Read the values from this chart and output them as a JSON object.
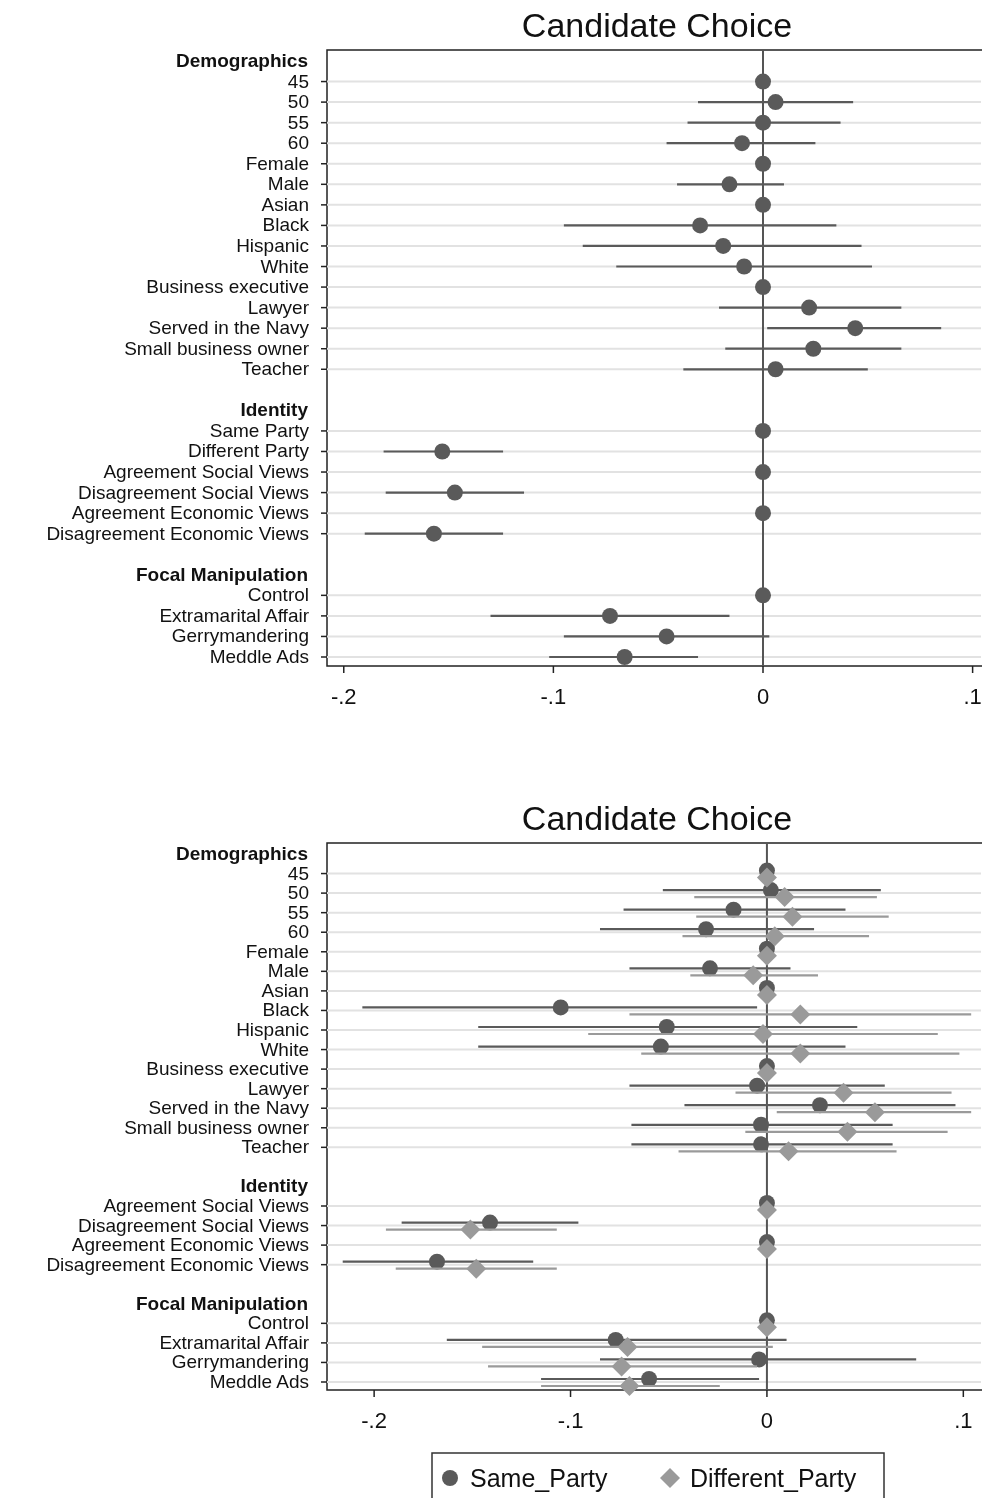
{
  "chart_data": [
    {
      "type": "scatter",
      "title": "Candidate Choice",
      "orientation": "horizontal",
      "marker": "circle",
      "categories": [
        "Demographics",
        "45",
        "50",
        "55",
        "60",
        "Female",
        "Male",
        "Asian",
        "Black",
        "Hispanic",
        "White",
        "Business executive",
        "Lawyer",
        "Served in the Navy",
        "Small business owner",
        "Teacher",
        null,
        "Identity",
        "Same Party",
        "Different Party",
        "Agreement Social Views",
        "Disagreement Social Views",
        "Agreement Economic Views",
        "Disagreement Economic Views",
        null,
        "Focal Manipulation",
        "Control",
        "Extramarital Affair",
        "Gerrymandering",
        "Meddle Ads"
      ],
      "series": [
        {
          "color": "#5a5a5a",
          "values": [
            null,
            0,
            0.006,
            0,
            -0.01,
            0,
            -0.016,
            0,
            -0.03,
            -0.019,
            -0.009,
            0,
            0.022,
            0.044,
            0.024,
            0.006,
            null,
            null,
            0,
            -0.153,
            0,
            -0.147,
            0,
            -0.157,
            null,
            null,
            0,
            -0.073,
            -0.046,
            -0.066
          ],
          "errors": [
            null,
            null,
            [
              -0.031,
              0.043
            ],
            [
              -0.036,
              0.037
            ],
            [
              -0.046,
              0.025
            ],
            null,
            [
              -0.041,
              0.01
            ],
            null,
            [
              -0.095,
              0.035
            ],
            [
              -0.086,
              0.047
            ],
            [
              -0.07,
              0.052
            ],
            null,
            [
              -0.021,
              0.066
            ],
            [
              0.002,
              0.085
            ],
            [
              -0.018,
              0.066
            ],
            [
              -0.038,
              0.05
            ],
            null,
            null,
            null,
            [
              -0.181,
              -0.124
            ],
            null,
            [
              -0.18,
              -0.114
            ],
            null,
            [
              -0.19,
              -0.124
            ],
            null,
            null,
            null,
            [
              -0.13,
              -0.016
            ],
            [
              -0.095,
              0.003
            ],
            [
              -0.102,
              -0.031
            ]
          ]
        }
      ],
      "xlim": [
        -0.208,
        0.104
      ],
      "xticks": [
        {
          "value": -0.2,
          "label": "-.2"
        },
        {
          "value": -0.1,
          "label": "-.1"
        },
        {
          "value": 0,
          "label": "0"
        },
        {
          "value": 0.1,
          "label": ".1"
        }
      ],
      "ref_lines": [
        {
          "axis": "x",
          "value": 0
        }
      ],
      "grid": "y",
      "legend": false
    },
    {
      "type": "scatter",
      "title": "Candidate Choice",
      "orientation": "horizontal",
      "categories": [
        "Demographics",
        "45",
        "50",
        "55",
        "60",
        "Female",
        "Male",
        "Asian",
        "Black",
        "Hispanic",
        "White",
        "Business executive",
        "Lawyer",
        "Served in the Navy",
        "Small business owner",
        "Teacher",
        null,
        "Identity",
        "Agreement Social Views",
        "Disagreement Social Views",
        "Agreement Economic Views",
        "Disagreement Economic Views",
        null,
        "Focal Manipulation",
        "Control",
        "Extramarital Affair",
        "Gerrymandering",
        "Meddle Ads"
      ],
      "series": [
        {
          "name": "Same_Party",
          "color": "#5a5a5a",
          "marker": "circle",
          "values": [
            null,
            0,
            0.002,
            -0.017,
            -0.031,
            0,
            -0.029,
            0,
            -0.105,
            -0.051,
            -0.054,
            0,
            -0.005,
            0.027,
            -0.003,
            -0.003,
            null,
            null,
            0,
            -0.141,
            0,
            -0.168,
            null,
            null,
            0,
            -0.077,
            -0.004,
            -0.06
          ],
          "errors": [
            null,
            null,
            [
              -0.053,
              0.058
            ],
            [
              -0.073,
              0.04
            ],
            [
              -0.085,
              0.024
            ],
            null,
            [
              -0.07,
              0.012
            ],
            null,
            [
              -0.206,
              -0.005
            ],
            [
              -0.147,
              0.046
            ],
            [
              -0.147,
              0.04
            ],
            null,
            [
              -0.07,
              0.06
            ],
            [
              -0.042,
              0.096
            ],
            [
              -0.069,
              0.064
            ],
            [
              -0.069,
              0.064
            ],
            null,
            null,
            null,
            [
              -0.186,
              -0.096
            ],
            null,
            [
              -0.216,
              -0.119
            ],
            null,
            null,
            null,
            [
              -0.163,
              0.01
            ],
            [
              -0.085,
              0.076
            ],
            [
              -0.115,
              -0.004
            ]
          ]
        },
        {
          "name": "Different_Party",
          "color": "#9a9a9a",
          "marker": "diamond",
          "values": [
            null,
            0,
            0.009,
            0.013,
            0.004,
            0,
            -0.007,
            0,
            0.017,
            -0.002,
            0.017,
            0,
            0.039,
            0.055,
            0.041,
            0.011,
            null,
            null,
            0,
            -0.151,
            0,
            -0.148,
            null,
            null,
            0,
            -0.071,
            -0.074,
            -0.07
          ],
          "errors": [
            null,
            null,
            [
              -0.037,
              0.056
            ],
            [
              -0.036,
              0.062
            ],
            [
              -0.043,
              0.052
            ],
            null,
            [
              -0.039,
              0.026
            ],
            null,
            [
              -0.07,
              0.104
            ],
            [
              -0.091,
              0.087
            ],
            [
              -0.064,
              0.098
            ],
            null,
            [
              -0.016,
              0.094
            ],
            [
              0.005,
              0.104
            ],
            [
              -0.011,
              0.092
            ],
            [
              -0.045,
              0.066
            ],
            null,
            null,
            null,
            [
              -0.194,
              -0.107
            ],
            null,
            [
              -0.189,
              -0.107
            ],
            null,
            null,
            null,
            [
              -0.145,
              0.003
            ],
            [
              -0.142,
              -0.005
            ],
            [
              -0.115,
              -0.024
            ]
          ]
        }
      ],
      "xlim": [
        -0.224,
        0.109
      ],
      "xticks": [
        {
          "value": -0.2,
          "label": "-.2"
        },
        {
          "value": -0.1,
          "label": "-.1"
        },
        {
          "value": 0,
          "label": "0"
        },
        {
          "value": 0.1,
          "label": ".1"
        }
      ],
      "ref_lines": [
        {
          "axis": "x",
          "value": 0
        }
      ],
      "grid": "y",
      "legend": "bottom"
    }
  ]
}
